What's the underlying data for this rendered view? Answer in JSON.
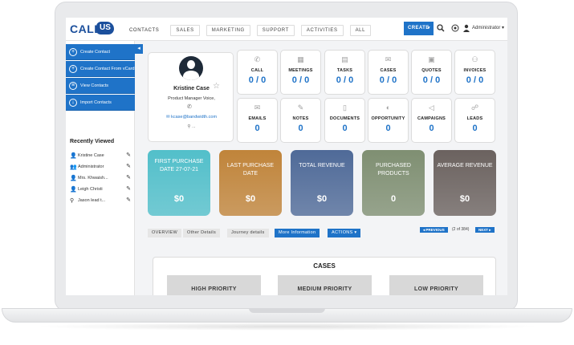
{
  "nav": {
    "logo_call": "CALL",
    "logo_us": "US",
    "items": [
      {
        "label": "CONTACTS"
      },
      {
        "label": "SALES"
      },
      {
        "label": "MARKETING"
      },
      {
        "label": "SUPPORT"
      },
      {
        "label": "ACTIVITIES"
      },
      {
        "label": "ALL"
      }
    ],
    "create_label": "CREATE",
    "user": "Administrator"
  },
  "sidebar": {
    "actions": [
      {
        "label": "Create Contact"
      },
      {
        "label": "Create Contact From vCard"
      },
      {
        "label": "View Contacts"
      },
      {
        "label": "Import Contacts"
      }
    ],
    "recently_viewed_title": "Recently Viewed",
    "recent": [
      {
        "label": "Kristine Case"
      },
      {
        "label": "Administrator"
      },
      {
        "label": "Mrs. Khwaish..."
      },
      {
        "label": "Leigh Christi"
      },
      {
        "label": "Jason lead t..."
      }
    ]
  },
  "profile": {
    "name": "Kristine Case",
    "role": "Product Manager Voice,",
    "email": "kcase@bandwidth.com",
    "location": "..."
  },
  "tiles": [
    {
      "label": "CALL",
      "value": "0 / 0",
      "icon": "phone-icon"
    },
    {
      "label": "MEETINGS",
      "value": "0 / 0",
      "icon": "meetings-icon"
    },
    {
      "label": "TASKS",
      "value": "0 / 0",
      "icon": "tasks-icon"
    },
    {
      "label": "CASES",
      "value": "0 / 0",
      "icon": "cases-icon"
    },
    {
      "label": "QUOTES",
      "value": "0 / 0",
      "icon": "quotes-icon"
    },
    {
      "label": "INVOICES",
      "value": "0 / 0",
      "icon": "invoices-icon"
    },
    {
      "label": "EMAILS",
      "value": "0",
      "icon": "email-icon"
    },
    {
      "label": "NOTES",
      "value": "0",
      "icon": "notes-icon"
    },
    {
      "label": "DOCUMENTS",
      "value": "0",
      "icon": "documents-icon"
    },
    {
      "label": "OPPORTUNITY",
      "value": "0",
      "icon": "opportunity-icon"
    },
    {
      "label": "CAMPAIGNS",
      "value": "0",
      "icon": "campaigns-icon"
    },
    {
      "label": "LEADS",
      "value": "0",
      "icon": "leads-icon"
    }
  ],
  "metrics": [
    {
      "label": "FIRST PURCHASE DATE 27-07-21",
      "value": "$0",
      "color": "#52bfca"
    },
    {
      "label": "LAST PURCHASE DATE",
      "value": "$0",
      "color": "#c0843a"
    },
    {
      "label": "TOTAL REVENUE",
      "value": "$0",
      "color": "#4f6a98"
    },
    {
      "label": "PURCHASED PRODUCTS",
      "value": "0",
      "color": "#7f8f72"
    },
    {
      "label": "AVERAGE REVENUE",
      "value": "$0",
      "color": "#6b625f"
    }
  ],
  "tabs": {
    "overview": "OVERVIEW",
    "other": "Other Details",
    "journey": "Journey details",
    "more": "More Information",
    "actions": "ACTIONS",
    "previous": "PREVIOUS",
    "page_info": "(2 of 384)",
    "next": "NEXT"
  },
  "cases": {
    "title": "CASES",
    "priorities": [
      {
        "label": "HIGH PRIORITY"
      },
      {
        "label": "MEDIUM PRIORITY"
      },
      {
        "label": "LOW PRIORITY"
      }
    ]
  }
}
